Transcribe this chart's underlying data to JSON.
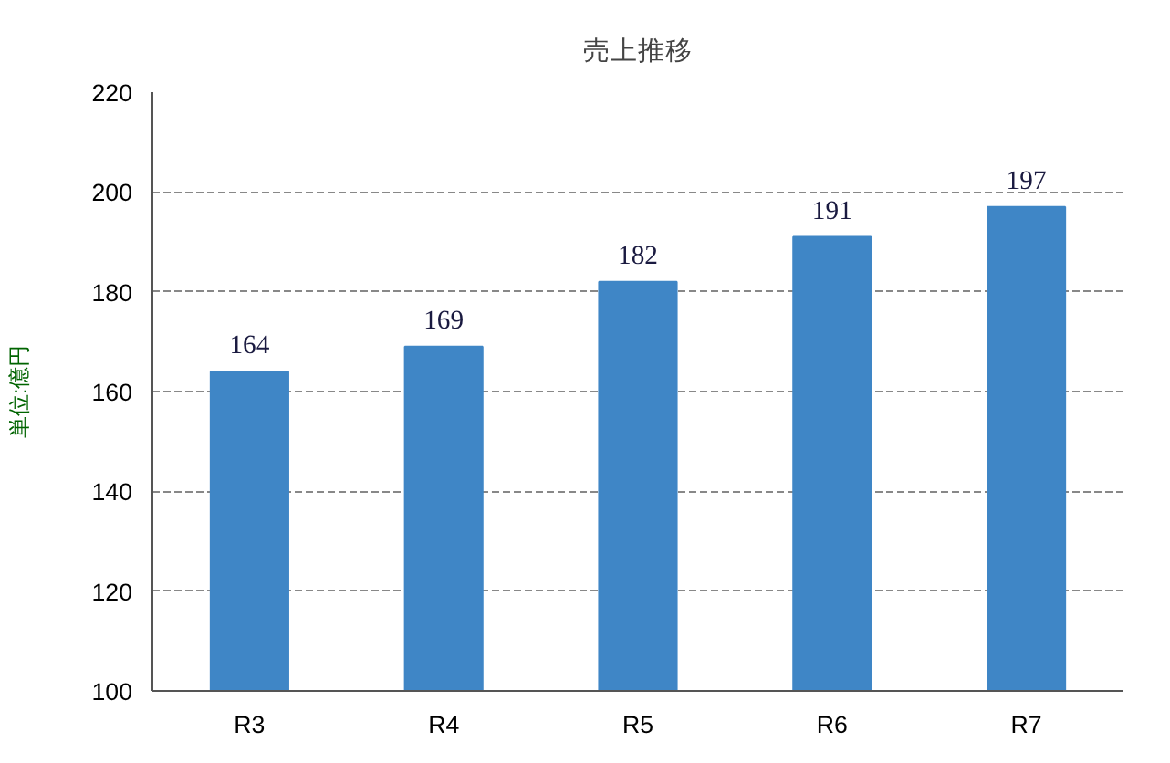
{
  "chart_data": {
    "type": "bar",
    "title": "売上推移",
    "ylabel": "単位:億円",
    "categories": [
      "R3",
      "R4",
      "R5",
      "R6",
      "R7"
    ],
    "values": [
      164,
      169,
      182,
      191,
      197
    ],
    "color": "#3f86c6",
    "ylim": [
      100,
      220
    ],
    "yticks": [
      100,
      120,
      140,
      160,
      180,
      200,
      220
    ],
    "grid": "y",
    "data_labels": true
  }
}
